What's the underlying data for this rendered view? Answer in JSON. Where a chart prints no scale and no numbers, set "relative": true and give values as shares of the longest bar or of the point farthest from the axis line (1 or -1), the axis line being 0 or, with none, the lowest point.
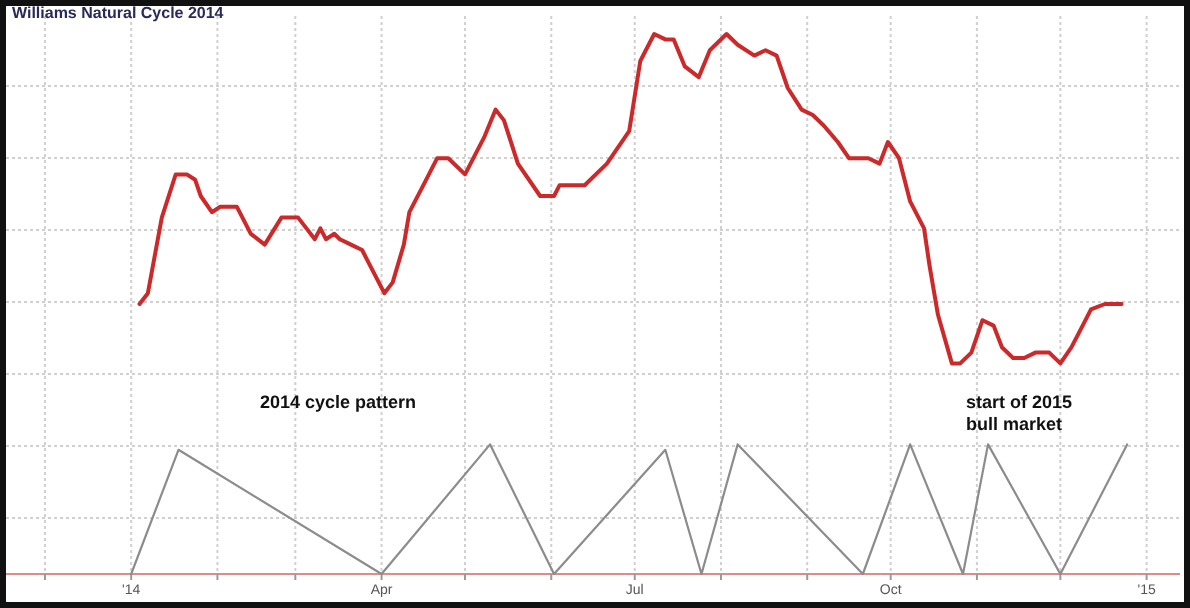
{
  "chart_data": {
    "type": "line",
    "title": "Williams Natural Cycle 2014",
    "relative": true,
    "grid": true,
    "xlim": [
      "2013-11-17",
      "2015-01-13"
    ],
    "xticks": [
      {
        "value": "2013-12-01",
        "label": null
      },
      {
        "value": "2014-01-01",
        "label": "'14"
      },
      {
        "value": "2014-02-01",
        "label": null
      },
      {
        "value": "2014-03-01",
        "label": null
      },
      {
        "value": "2014-04-01",
        "label": "Apr"
      },
      {
        "value": "2014-05-01",
        "label": null
      },
      {
        "value": "2014-06-01",
        "label": null
      },
      {
        "value": "2014-07-01",
        "label": "Jul"
      },
      {
        "value": "2014-08-01",
        "label": null
      },
      {
        "value": "2014-09-01",
        "label": null
      },
      {
        "value": "2014-10-01",
        "label": "Oct"
      },
      {
        "value": "2014-11-01",
        "label": null
      },
      {
        "value": "2014-12-01",
        "label": null
      },
      {
        "value": "2015-01-01",
        "label": "'15"
      }
    ],
    "series": [
      {
        "color": "#cc2a2a",
        "x": [
          "2014-01-04",
          "2014-01-07",
          "2014-01-12",
          "2014-01-17",
          "2014-01-21",
          "2014-01-24",
          "2014-01-26",
          "2014-01-30",
          "2014-02-02",
          "2014-02-08",
          "2014-02-13",
          "2014-02-18",
          "2014-02-24",
          "2014-03-02",
          "2014-03-05",
          "2014-03-08",
          "2014-03-10",
          "2014-03-12",
          "2014-03-15",
          "2014-03-17",
          "2014-03-21",
          "2014-03-25",
          "2014-03-27",
          "2014-04-02",
          "2014-04-05",
          "2014-04-09",
          "2014-04-11",
          "2014-04-17",
          "2014-04-21",
          "2014-04-25",
          "2014-05-01",
          "2014-05-04",
          "2014-05-08",
          "2014-05-12",
          "2014-05-15",
          "2014-05-20",
          "2014-05-28",
          "2014-06-02",
          "2014-06-04",
          "2014-06-13",
          "2014-06-21",
          "2014-06-25",
          "2014-06-29",
          "2014-07-03",
          "2014-07-08",
          "2014-07-12",
          "2014-07-15",
          "2014-07-19",
          "2014-07-24",
          "2014-07-28",
          "2014-08-03",
          "2014-08-07",
          "2014-08-13",
          "2014-08-17",
          "2014-08-21",
          "2014-08-25",
          "2014-08-30",
          "2014-09-03",
          "2014-09-07",
          "2014-09-12",
          "2014-09-16",
          "2014-09-23",
          "2014-09-27",
          "2014-09-30",
          "2014-10-04",
          "2014-10-08",
          "2014-10-13",
          "2014-10-15",
          "2014-10-18",
          "2014-10-23",
          "2014-10-26",
          "2014-10-30",
          "2014-11-03",
          "2014-11-07",
          "2014-11-10",
          "2014-11-14",
          "2014-11-18",
          "2014-11-22",
          "2014-11-27",
          "2014-12-01",
          "2014-12-05",
          "2014-12-09",
          "2014-12-12",
          "2014-12-17",
          "2014-12-23"
        ],
        "values": [
          0.5,
          0.52,
          0.66,
          0.74,
          0.74,
          0.73,
          0.7,
          0.67,
          0.68,
          0.68,
          0.63,
          0.61,
          0.66,
          0.66,
          0.64,
          0.62,
          0.64,
          0.62,
          0.63,
          0.62,
          0.61,
          0.6,
          0.58,
          0.52,
          0.54,
          0.61,
          0.67,
          0.73,
          0.77,
          0.77,
          0.74,
          0.77,
          0.81,
          0.86,
          0.84,
          0.76,
          0.7,
          0.7,
          0.72,
          0.72,
          0.76,
          0.79,
          0.82,
          0.95,
          1,
          0.99,
          0.99,
          0.94,
          0.92,
          0.97,
          1,
          0.98,
          0.96,
          0.97,
          0.96,
          0.9,
          0.86,
          0.85,
          0.83,
          0.8,
          0.77,
          0.77,
          0.76,
          0.8,
          0.77,
          0.69,
          0.64,
          0.57,
          0.48,
          0.39,
          0.39,
          0.41,
          0.47,
          0.46,
          0.42,
          0.4,
          0.4,
          0.41,
          0.41,
          0.39,
          0.42,
          0.46,
          0.49,
          0.5,
          0.5
        ]
      },
      {
        "color": "#8c8c8c",
        "x": [
          "2014-01-01",
          "2014-01-18",
          "2014-04-01",
          "2014-05-10",
          "2014-06-02",
          "2014-07-12",
          "2014-07-25",
          "2014-08-07",
          "2014-09-21",
          "2014-10-08",
          "2014-10-27",
          "2014-11-05",
          "2014-12-01",
          "2014-12-25"
        ],
        "values": [
          0,
          0.23,
          0,
          0.24,
          0,
          0.23,
          0,
          0.24,
          0,
          0.24,
          0,
          0.24,
          0,
          0.24
        ]
      }
    ],
    "annotations": [
      "2014 cycle pattern",
      "start of 2015\nbull market"
    ]
  }
}
